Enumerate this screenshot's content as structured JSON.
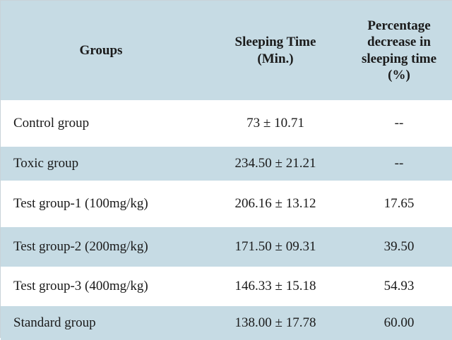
{
  "table": {
    "headers": {
      "groups": "Groups",
      "sleeping_time": [
        "Sleeping Time",
        "(Min.)"
      ],
      "percentage": [
        "Percentage",
        "decrease in",
        "sleeping time",
        "(%)"
      ]
    },
    "rows": [
      {
        "group": "Control group",
        "sleeping_time": "73 ± 10.71",
        "percentage": "--"
      },
      {
        "group": "Toxic group",
        "sleeping_time": "234.50 ± 21.21",
        "percentage": "--"
      },
      {
        "group": "Test group-1 (100mg/kg)",
        "sleeping_time": "206.16 ± 13.12",
        "percentage": "17.65"
      },
      {
        "group": "Test group-2 (200mg/kg)",
        "sleeping_time": "171.50 ± 09.31",
        "percentage": "39.50"
      },
      {
        "group": "Test group-3 (400mg/kg)",
        "sleeping_time": "146.33 ± 15.18",
        "percentage": "54.93"
      },
      {
        "group": "Standard group",
        "sleeping_time": "138.00 ± 17.78",
        "percentage": "60.00"
      }
    ],
    "colors": {
      "band": "#c6dbe4",
      "text": "#1a1a1a"
    }
  }
}
